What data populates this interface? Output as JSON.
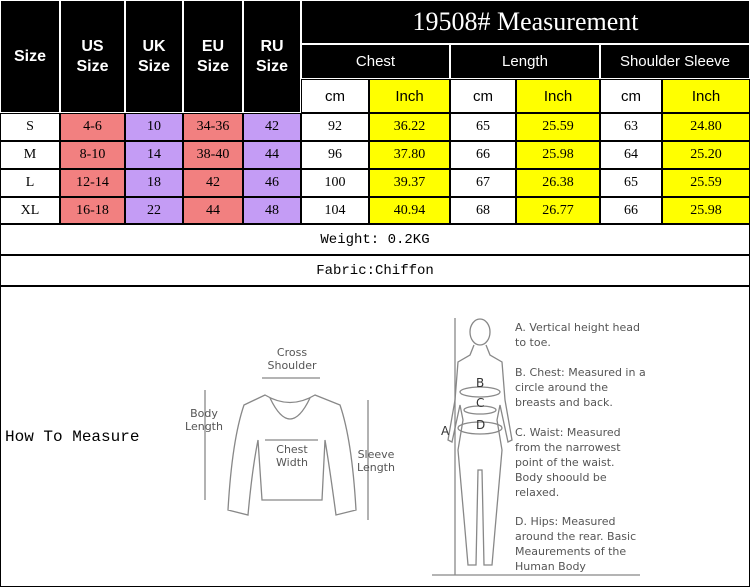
{
  "table": {
    "title": "19508# Measurement",
    "size_headers": [
      "Size",
      "US Size",
      "UK Size",
      "EU Size",
      "RU Size"
    ],
    "groups": [
      "Chest",
      "Length",
      "Shoulder Sleeve"
    ],
    "units": [
      "cm",
      "Inch"
    ],
    "rows": [
      [
        "S",
        "4-6",
        "10",
        "34-36",
        "42",
        "92",
        "36.22",
        "65",
        "25.59",
        "63",
        "24.80"
      ],
      [
        "M",
        "8-10",
        "14",
        "38-40",
        "44",
        "96",
        "37.80",
        "66",
        "25.98",
        "64",
        "25.20"
      ],
      [
        "L",
        "12-14",
        "18",
        "42",
        "46",
        "100",
        "39.37",
        "67",
        "26.38",
        "65",
        "25.59"
      ],
      [
        "XL",
        "16-18",
        "22",
        "44",
        "48",
        "104",
        "40.94",
        "68",
        "26.77",
        "66",
        "25.98"
      ]
    ]
  },
  "weight": "Weight: 0.2KG",
  "fabric": "Fabric:Chiffon",
  "how_to_measure": "How To Measure",
  "sweater": {
    "labels": [
      "Cross Shoulder",
      "Body Length",
      "Chest Width",
      "Sleeve Length"
    ]
  },
  "body": {
    "letters": [
      "A",
      "B",
      "C",
      "D"
    ],
    "notes": [
      "A. Vertical height head to toe.",
      "B. Chest: Measured in a circle around the breasts and back.",
      "C. Waist: Measured from the narrowest point of the waist. Body shoould be relaxed.",
      "D. Hips: Measured around the rear. Basic Meaurements of the Human Body"
    ]
  }
}
